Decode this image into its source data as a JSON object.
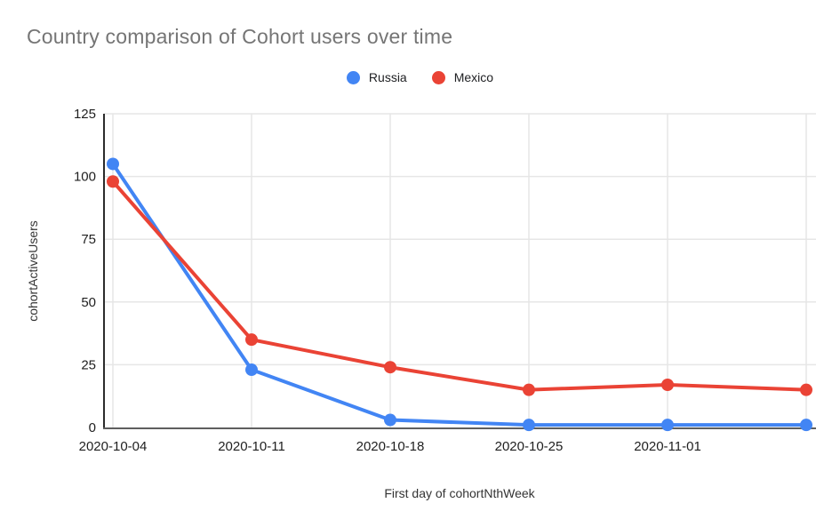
{
  "title": {
    "text": "Country comparison of Cohort users over time",
    "color": "#757575"
  },
  "legend": {
    "items": [
      {
        "label": "Russia",
        "color": "#4285F4"
      },
      {
        "label": "Mexico",
        "color": "#EA4335"
      }
    ]
  },
  "chart_data": {
    "type": "line",
    "title": "Country comparison of Cohort users over time",
    "xlabel": "First day of cohortNthWeek",
    "ylabel": "cohortActiveUsers",
    "categories": [
      "2020-10-04",
      "2020-10-11",
      "2020-10-18",
      "2020-10-25",
      "2020-11-01",
      ""
    ],
    "x_tick_labels": [
      "2020-10-04",
      "2020-10-11",
      "2020-10-18",
      "2020-10-25",
      "2020-11-01"
    ],
    "series": [
      {
        "name": "Russia",
        "color": "#4285F4",
        "values": [
          105,
          23,
          3,
          1,
          1,
          1
        ]
      },
      {
        "name": "Mexico",
        "color": "#EA4335",
        "values": [
          98,
          35,
          24,
          15,
          17,
          15
        ]
      }
    ],
    "ylim": [
      0,
      125
    ],
    "yticks": [
      0,
      25,
      50,
      75,
      100,
      125
    ],
    "grid": true,
    "legend_position": "top",
    "colors": {
      "gridline": "#e6e6e6",
      "axis_left": "#2b2b2b",
      "axis_bottom": "#5f5f5f",
      "tick_text": "#1f1f1f"
    }
  }
}
